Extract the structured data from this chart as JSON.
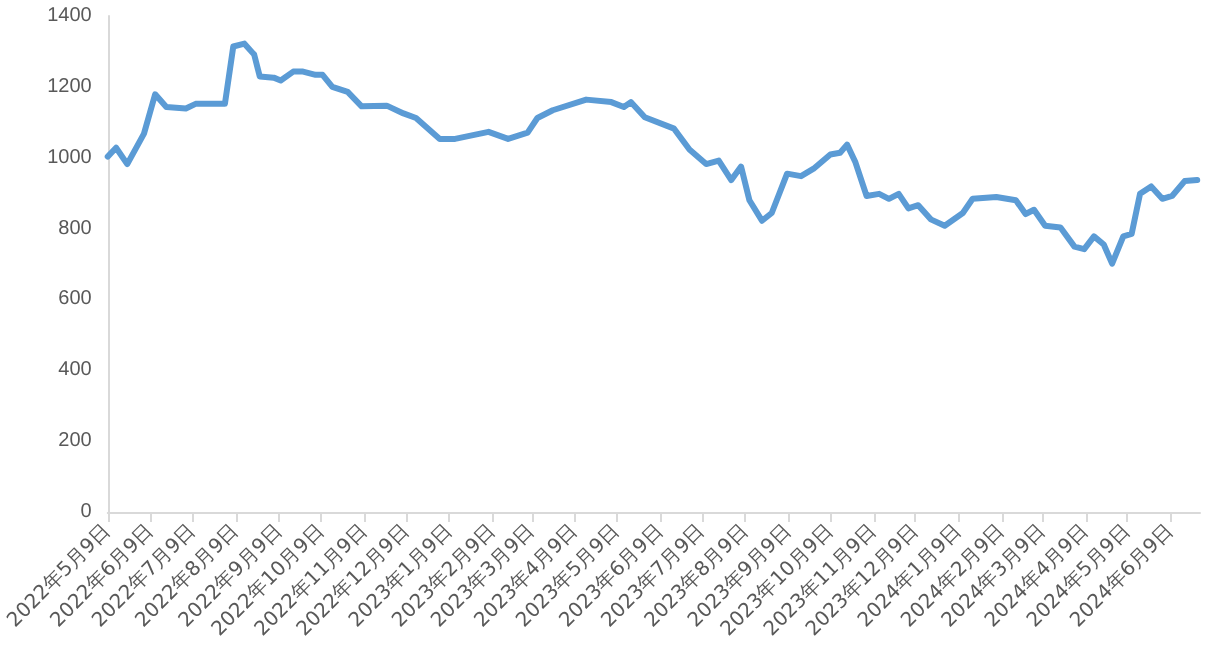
{
  "chart_data": {
    "type": "line",
    "color": "#5b9bd5",
    "marker": "none",
    "grid": false,
    "x": [
      "2022-05-09",
      "2022-05-15",
      "2022-05-23",
      "2022-06-04",
      "2022-06-12",
      "2022-06-20",
      "2022-07-04",
      "2022-07-11",
      "2022-08-01",
      "2022-08-07",
      "2022-08-15",
      "2022-08-22",
      "2022-08-26",
      "2022-09-05",
      "2022-09-10",
      "2022-09-19",
      "2022-09-26",
      "2022-10-05",
      "2022-10-10",
      "2022-10-17",
      "2022-10-28",
      "2022-11-07",
      "2022-11-25",
      "2022-12-07",
      "2022-12-16",
      "2023-01-02",
      "2023-01-13",
      "2023-02-06",
      "2023-02-20",
      "2023-03-06",
      "2023-03-13",
      "2023-03-24",
      "2023-04-17",
      "2023-05-05",
      "2023-05-14",
      "2023-05-19",
      "2023-05-29",
      "2023-06-19",
      "2023-06-30",
      "2023-07-12",
      "2023-07-21",
      "2023-07-30",
      "2023-08-06",
      "2023-08-12",
      "2023-08-21",
      "2023-08-28",
      "2023-09-08",
      "2023-09-18",
      "2023-09-27",
      "2023-10-09",
      "2023-10-16",
      "2023-10-21",
      "2023-10-27",
      "2023-11-04",
      "2023-11-13",
      "2023-11-20",
      "2023-11-27",
      "2023-12-04",
      "2023-12-11",
      "2023-12-20",
      "2023-12-30",
      "2024-01-12",
      "2024-01-19",
      "2024-02-05",
      "2024-02-19",
      "2024-02-26",
      "2024-03-03",
      "2024-03-11",
      "2024-03-22",
      "2024-04-01",
      "2024-04-08",
      "2024-04-15",
      "2024-04-22",
      "2024-04-28",
      "2024-05-06",
      "2024-05-12",
      "2024-05-18",
      "2024-05-26",
      "2024-06-03",
      "2024-06-10",
      "2024-06-19",
      "2024-06-28"
    ],
    "values": [
      1003,
      1028,
      982,
      1068,
      1179,
      1143,
      1139,
      1152,
      1152,
      1314,
      1322,
      1291,
      1229,
      1226,
      1218,
      1243,
      1243,
      1234,
      1234,
      1200,
      1186,
      1145,
      1147,
      1125,
      1112,
      1053,
      1053,
      1073,
      1053,
      1071,
      1112,
      1134,
      1164,
      1157,
      1143,
      1157,
      1114,
      1082,
      1023,
      982,
      992,
      937,
      975,
      880,
      822,
      844,
      955,
      948,
      969,
      1009,
      1014,
      1037,
      987,
      892,
      898,
      884,
      898,
      857,
      866,
      826,
      808,
      844,
      884,
      889,
      880,
      841,
      853,
      808,
      803,
      749,
      742,
      778,
      755,
      701,
      778,
      785,
      898,
      919,
      884,
      892,
      934,
      937
    ],
    "xlim": [
      "2022-05-09",
      "2024-06-30"
    ],
    "xticks": [
      {
        "value": "2022-05-09",
        "label": "2022年5月9日"
      },
      {
        "value": "2022-06-09",
        "label": "2022年6月9日"
      },
      {
        "value": "2022-07-09",
        "label": "2022年7月9日"
      },
      {
        "value": "2022-08-09",
        "label": "2022年8月9日"
      },
      {
        "value": "2022-09-09",
        "label": "2022年9月9日"
      },
      {
        "value": "2022-10-09",
        "label": "2022年10月9日"
      },
      {
        "value": "2022-11-09",
        "label": "2022年11月9日"
      },
      {
        "value": "2022-12-09",
        "label": "2022年12月9日"
      },
      {
        "value": "2023-01-09",
        "label": "2023年1月9日"
      },
      {
        "value": "2023-02-09",
        "label": "2023年2月9日"
      },
      {
        "value": "2023-03-09",
        "label": "2023年3月9日"
      },
      {
        "value": "2023-04-09",
        "label": "2023年4月9日"
      },
      {
        "value": "2023-05-09",
        "label": "2023年5月9日"
      },
      {
        "value": "2023-06-09",
        "label": "2023年6月9日"
      },
      {
        "value": "2023-07-09",
        "label": "2023年7月9日"
      },
      {
        "value": "2023-08-09",
        "label": "2023年8月9日"
      },
      {
        "value": "2023-09-09",
        "label": "2023年9月9日"
      },
      {
        "value": "2023-10-09",
        "label": "2023年10月9日"
      },
      {
        "value": "2023-11-09",
        "label": "2023年11月9日"
      },
      {
        "value": "2023-12-09",
        "label": "2023年12月9日"
      },
      {
        "value": "2024-01-09",
        "label": "2024年1月9日"
      },
      {
        "value": "2024-02-09",
        "label": "2024年2月9日"
      },
      {
        "value": "2024-03-09",
        "label": "2024年3月9日"
      },
      {
        "value": "2024-04-09",
        "label": "2024年4月9日"
      },
      {
        "value": "2024-05-09",
        "label": "2024年5月9日"
      },
      {
        "value": "2024-06-09",
        "label": "2024年6月9日"
      }
    ],
    "ylim": [
      0,
      1400
    ],
    "yticks": [
      0,
      200,
      400,
      600,
      800,
      1000,
      1200,
      1400
    ]
  }
}
